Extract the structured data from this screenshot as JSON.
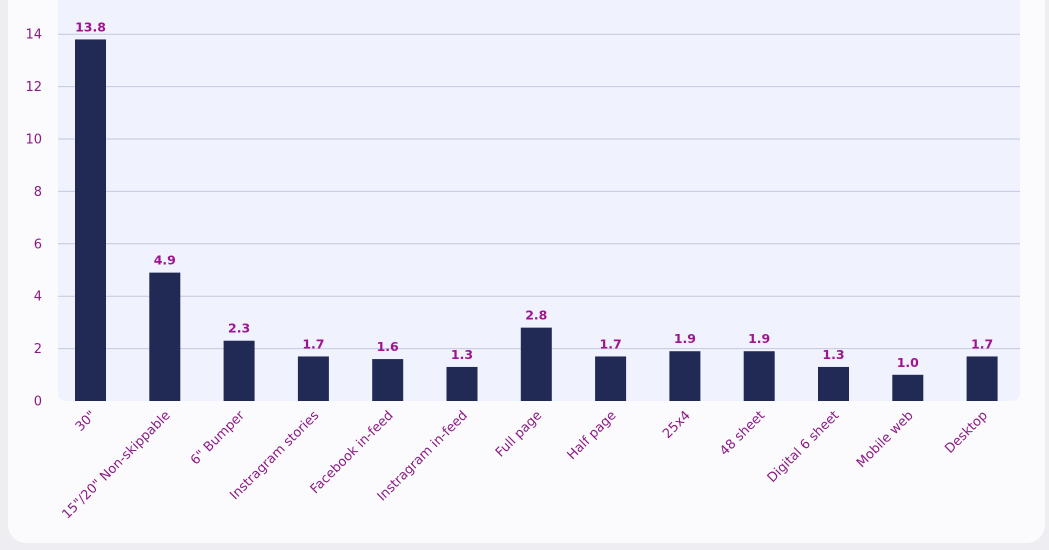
{
  "chart_data": {
    "type": "bar",
    "categories": [
      "30\"",
      "15\"/20\" Non-skippable",
      "6\" Bumper",
      "Instragram stories",
      "Facebook in-feed",
      "Instragram in-feed",
      "Full page",
      "Half page",
      "25x4",
      "48 sheet",
      "Digital 6 sheet",
      "Mobile web",
      "Desktop"
    ],
    "values": [
      13.8,
      4.9,
      2.3,
      1.7,
      1.6,
      1.3,
      2.8,
      1.7,
      1.9,
      1.9,
      1.3,
      1.0,
      1.7
    ],
    "data_labels": [
      "13.8",
      "4.9",
      "2.3",
      "1.7",
      "1.6",
      "1.3",
      "2.8",
      "1.7",
      "1.9",
      "1.9",
      "1.3",
      "1.0",
      "1.7"
    ],
    "yticks": [
      0,
      2,
      4,
      6,
      8,
      10,
      12,
      14
    ],
    "ylim": [
      0,
      14.6
    ],
    "title": "",
    "xlabel": "",
    "ylabel": "",
    "grid": true,
    "colors": {
      "bar": "#212a55",
      "plot_background": "#f0f2fe",
      "gridline": "#c5c8dc",
      "axis_text": "#8c1a86",
      "data_label": "#a0158f"
    }
  }
}
